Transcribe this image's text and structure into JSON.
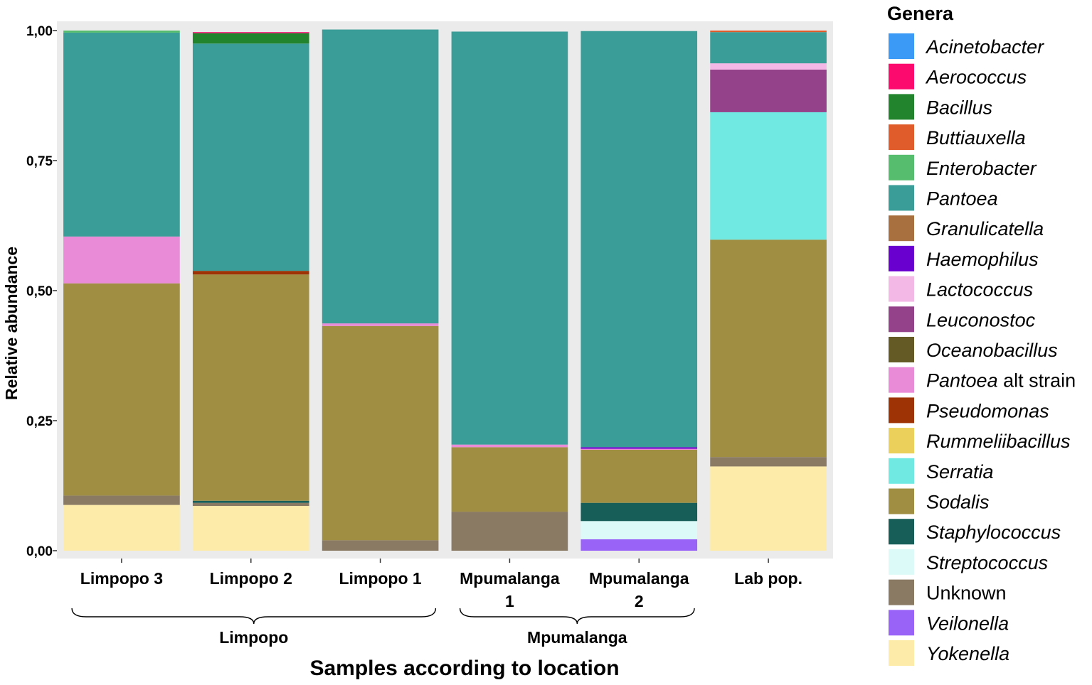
{
  "chart_data": {
    "type": "bar",
    "stacked": true,
    "title": "",
    "xlabel": "Samples according to location",
    "ylabel": "Relative abundance",
    "ylim": [
      0,
      1
    ],
    "yticks": [
      0,
      0.25,
      0.5,
      0.75,
      1
    ],
    "ytick_labels": [
      "0,00",
      "0,25",
      "0,50",
      "0,75",
      "1,00"
    ],
    "grid": false,
    "panel_background": "#ebebeb",
    "categories": [
      {
        "line1": "Limpopo 3",
        "line2": ""
      },
      {
        "line1": "Limpopo 2",
        "line2": ""
      },
      {
        "line1": "Limpopo 1",
        "line2": ""
      },
      {
        "line1": "Mpumalanga",
        "line2": "1"
      },
      {
        "line1": "Mpumalanga",
        "line2": "2"
      },
      {
        "line1": "Lab pop.",
        "line2": ""
      }
    ],
    "groups": [
      {
        "label": "Limpopo",
        "from": 0,
        "to": 2
      },
      {
        "label": "Mpumalanga",
        "from": 3,
        "to": 4
      }
    ],
    "legend_title": "Genera",
    "legend_position": "right",
    "series": [
      {
        "name": "Acinetobacter",
        "italic": "Acinetobacter",
        "suffix": "",
        "color": "#3b9af5",
        "values": [
          0,
          0,
          0,
          0,
          0,
          0
        ]
      },
      {
        "name": "Aerococcus",
        "italic": "Aerococcus",
        "suffix": "",
        "color": "#fc0a6e",
        "values": [
          0,
          0.002,
          0,
          0,
          0,
          0
        ]
      },
      {
        "name": "Bacillus",
        "italic": "Bacillus",
        "suffix": "",
        "color": "#22852e",
        "values": [
          0,
          0.02,
          0,
          0,
          0,
          0
        ]
      },
      {
        "name": "Buttiauxella",
        "italic": "Buttiauxella",
        "suffix": "",
        "color": "#e05c2a",
        "values": [
          0,
          0,
          0,
          0,
          0,
          0.003
        ]
      },
      {
        "name": "Enterobacter",
        "italic": "Enterobacter",
        "suffix": "",
        "color": "#56bd6e",
        "values": [
          0.004,
          0,
          0,
          0,
          0,
          0
        ]
      },
      {
        "name": "Pantoea",
        "italic": "Pantoea",
        "suffix": "",
        "color": "#3b9d98",
        "values": [
          0.392,
          0.437,
          0.565,
          0.794,
          0.8,
          0.06
        ]
      },
      {
        "name": "Granulicatella",
        "italic": "Granulicatella",
        "suffix": "",
        "color": "#a8703e",
        "values": [
          0,
          0,
          0,
          0,
          0,
          0
        ]
      },
      {
        "name": "Haemophilus",
        "italic": "Haemophilus",
        "suffix": "",
        "color": "#6a00d0",
        "values": [
          0,
          0,
          0,
          0,
          0.003,
          0
        ]
      },
      {
        "name": "Lactococcus",
        "italic": "Lactococcus",
        "suffix": "",
        "color": "#f3b8e6",
        "values": [
          0,
          0,
          0,
          0,
          0,
          0.012
        ]
      },
      {
        "name": "Leuconostoc",
        "italic": "Leuconostoc",
        "suffix": "",
        "color": "#94428a",
        "values": [
          0,
          0,
          0,
          0,
          0,
          0.082
        ]
      },
      {
        "name": "Oceanobacillus",
        "italic": "Oceanobacillus",
        "suffix": "",
        "color": "#635a26",
        "values": [
          0,
          0,
          0,
          0,
          0,
          0
        ]
      },
      {
        "name": "Pantoea alt strain",
        "italic": "Pantoea",
        "suffix": " alt strain",
        "color": "#ea8bd8",
        "values": [
          0.09,
          0,
          0.005,
          0.005,
          0.002,
          0
        ]
      },
      {
        "name": "Pseudomonas",
        "italic": "Pseudomonas",
        "suffix": "",
        "color": "#9e3306",
        "values": [
          0,
          0.007,
          0,
          0,
          0,
          0
        ]
      },
      {
        "name": "Rummeliibacillus",
        "italic": "Rummeliibacillus",
        "suffix": "",
        "color": "#ebd15b",
        "values": [
          0,
          0,
          0,
          0,
          0,
          0
        ]
      },
      {
        "name": "Serratia",
        "italic": "Serratia",
        "suffix": "",
        "color": "#70e9e2",
        "values": [
          0,
          0,
          0,
          0,
          0,
          0.245
        ]
      },
      {
        "name": "Sodalis",
        "italic": "Sodalis",
        "suffix": "",
        "color": "#a08f43",
        "values": [
          0.408,
          0.435,
          0.412,
          0.124,
          0.102,
          0.418
        ]
      },
      {
        "name": "Staphylococcus",
        "italic": "Staphylococcus",
        "suffix": "",
        "color": "#185e58",
        "values": [
          0,
          0.004,
          0,
          0,
          0.035,
          0
        ]
      },
      {
        "name": "Streptococcus",
        "italic": "Streptococcus",
        "suffix": "",
        "color": "#dcfbf8",
        "values": [
          0,
          0,
          0,
          0,
          0.035,
          0
        ]
      },
      {
        "name": "Unknown",
        "italic": "",
        "suffix": "Unknown",
        "color": "#8a7a64",
        "values": [
          0.018,
          0.006,
          0.02,
          0.075,
          0,
          0.018
        ]
      },
      {
        "name": "Veilonella",
        "italic": "Veilonella",
        "suffix": "",
        "color": "#9963f8",
        "values": [
          0,
          0,
          0,
          0,
          0.022,
          0
        ]
      },
      {
        "name": "Yokenella",
        "italic": "Yokenella",
        "suffix": "",
        "color": "#fdeca9",
        "values": [
          0.088,
          0.086,
          0,
          0,
          0,
          0.162
        ]
      }
    ]
  }
}
